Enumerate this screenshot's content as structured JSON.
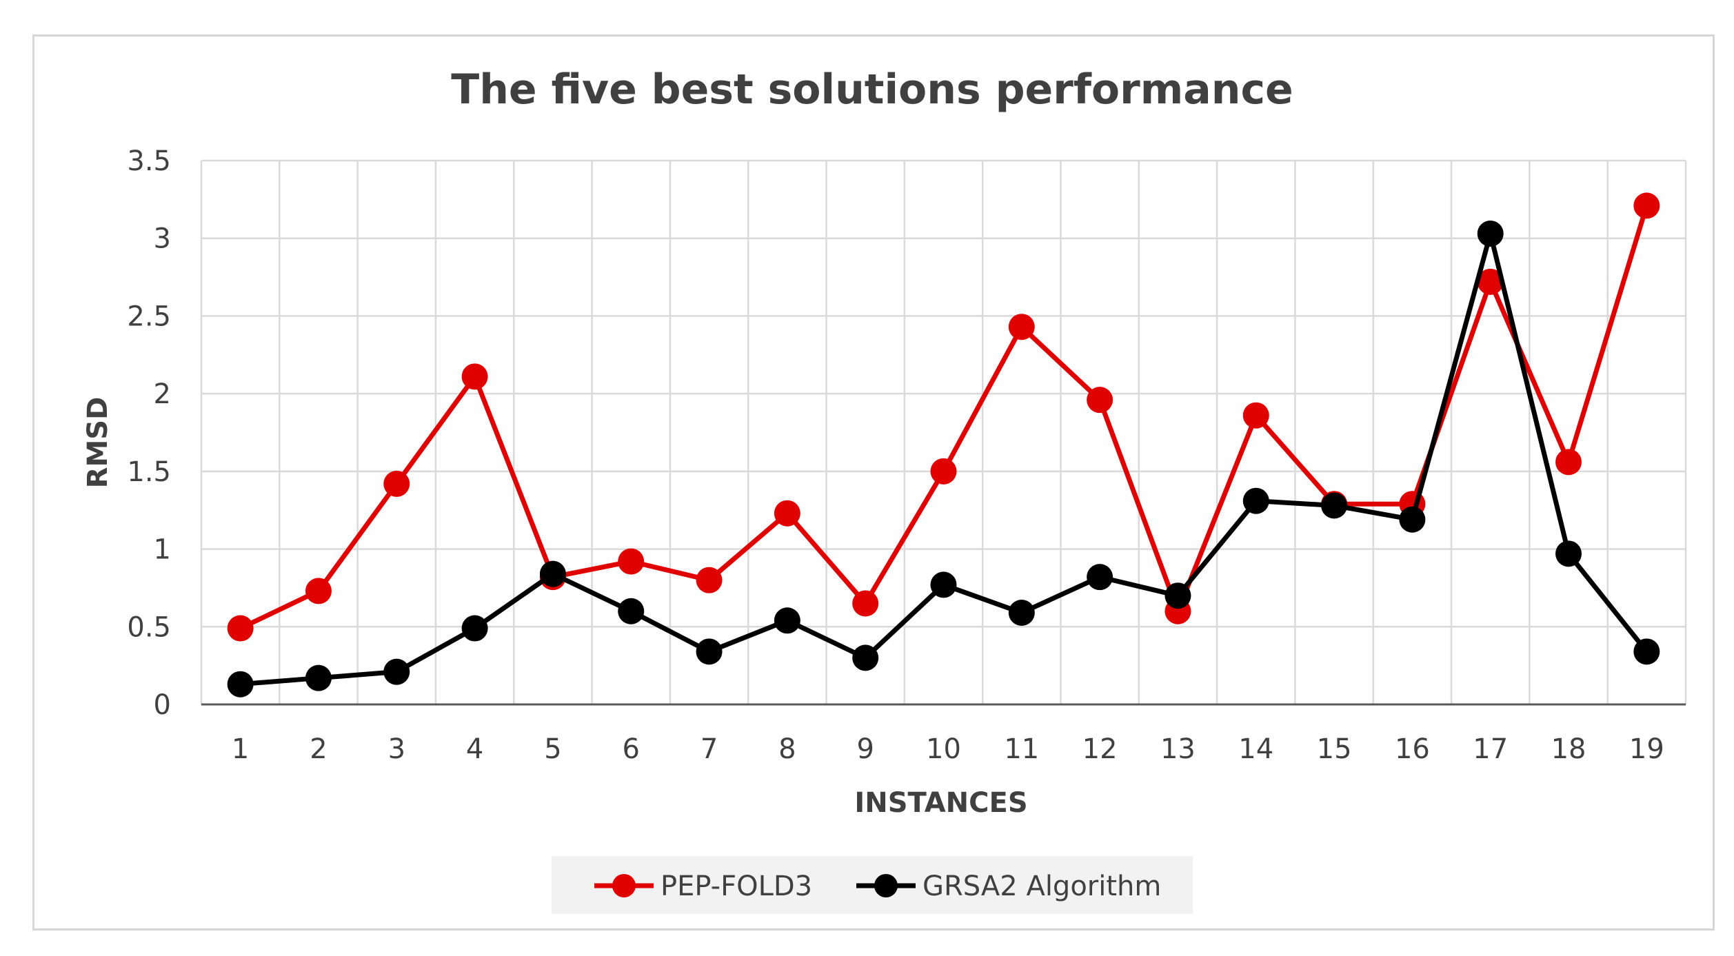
{
  "chart_data": {
    "type": "line",
    "title": "The five best solutions performance",
    "xlabel": "INSTANCES",
    "ylabel": "RMSD",
    "categories": [
      "1",
      "2",
      "3",
      "4",
      "5",
      "6",
      "7",
      "8",
      "9",
      "10",
      "11",
      "12",
      "13",
      "14",
      "15",
      "16",
      "17",
      "18",
      "19"
    ],
    "ylim": [
      0,
      3.5
    ],
    "yticks": [
      "0",
      "0.5",
      "1",
      "1.5",
      "2",
      "2.5",
      "3",
      "3.5"
    ],
    "grid": true,
    "legend_position": "bottom",
    "series": [
      {
        "name": "PEP-FOLD3",
        "color": "#e00000",
        "values": [
          0.49,
          0.73,
          1.42,
          2.11,
          0.82,
          0.92,
          0.8,
          1.23,
          0.65,
          1.5,
          2.43,
          1.96,
          0.6,
          1.86,
          1.29,
          1.29,
          2.72,
          1.56,
          3.21
        ]
      },
      {
        "name": "GRSA2 Algorithm",
        "color": "#000000",
        "values": [
          0.13,
          0.17,
          0.21,
          0.49,
          0.84,
          0.6,
          0.34,
          0.54,
          0.3,
          0.77,
          0.59,
          0.82,
          0.7,
          1.31,
          1.28,
          1.19,
          3.03,
          0.97,
          0.34
        ]
      }
    ]
  }
}
